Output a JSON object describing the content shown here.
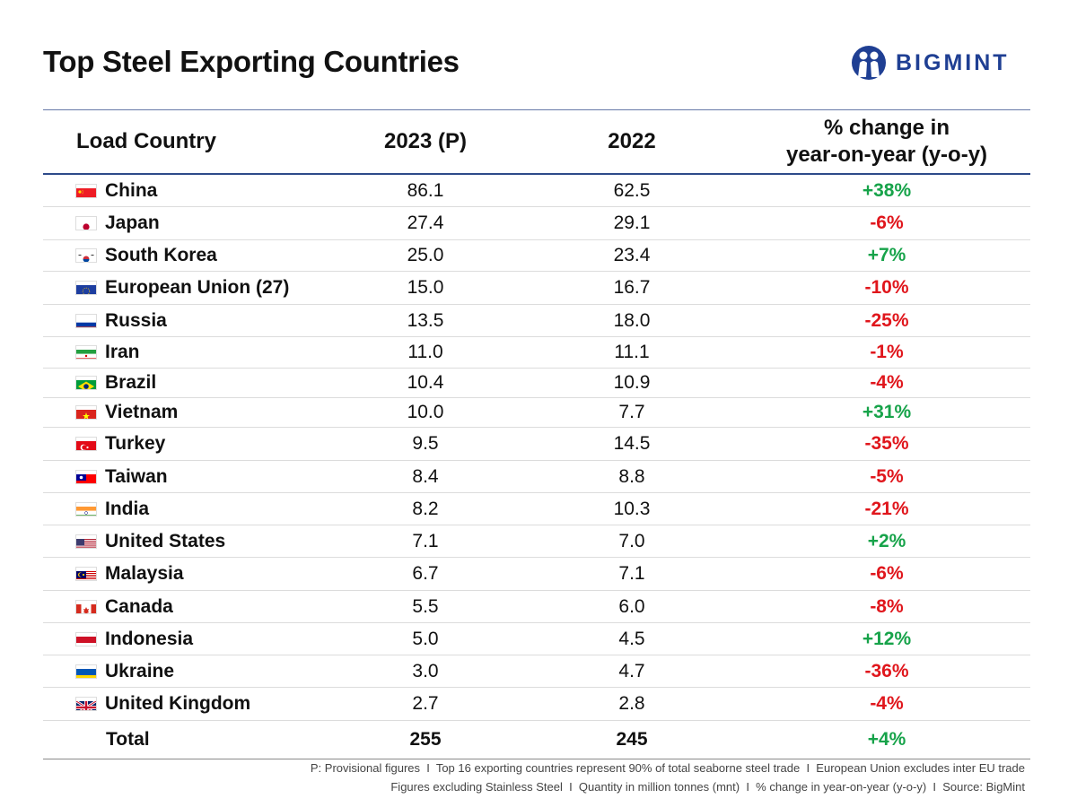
{
  "title": "Top Steel Exporting Countries",
  "brand": {
    "name": "BIGMINT",
    "color": "#1f3f93",
    "icon": "bigmint-logo-icon"
  },
  "colors": {
    "positive": "#17a34a",
    "negative": "#e0161c",
    "header_rule": "#2d4a8a"
  },
  "table": {
    "headers": {
      "country": "Load Country",
      "y2023": "2023 (P)",
      "y2022": "2022",
      "pct_line1": "% change in",
      "pct_line2": "year-on-year (y-o-y)"
    },
    "rows": [
      {
        "country": "China",
        "flag": "flag-china-icon",
        "y2023": "86.1",
        "y2022": "62.5",
        "pct": "+38%",
        "trend": "pos"
      },
      {
        "country": "Japan",
        "flag": "flag-japan-icon",
        "y2023": "27.4",
        "y2022": "29.1",
        "pct": "-6%",
        "trend": "neg"
      },
      {
        "country": "South Korea",
        "flag": "flag-south-korea-icon",
        "y2023": "25.0",
        "y2022": "23.4",
        "pct": "+7%",
        "trend": "pos"
      },
      {
        "country": "European Union (27)",
        "flag": "flag-eu-icon",
        "y2023": "15.0",
        "y2022": "16.7",
        "pct": "-10%",
        "trend": "neg"
      },
      {
        "country": "Russia",
        "flag": "flag-russia-icon",
        "y2023": "13.5",
        "y2022": "18.0",
        "pct": "-25%",
        "trend": "neg"
      },
      {
        "country": "Iran",
        "flag": "flag-iran-icon",
        "y2023": "11.0",
        "y2022": "11.1",
        "pct": "-1%",
        "trend": "neg"
      },
      {
        "country": "Brazil",
        "flag": "flag-brazil-icon",
        "y2023": "10.4",
        "y2022": "10.9",
        "pct": "-4%",
        "trend": "neg"
      },
      {
        "country": "Vietnam",
        "flag": "flag-vietnam-icon",
        "y2023": "10.0",
        "y2022": "7.7",
        "pct": "+31%",
        "trend": "pos"
      },
      {
        "country": "Turkey",
        "flag": "flag-turkey-icon",
        "y2023": "9.5",
        "y2022": "14.5",
        "pct": "-35%",
        "trend": "neg"
      },
      {
        "country": "Taiwan",
        "flag": "flag-taiwan-icon",
        "y2023": "8.4",
        "y2022": "8.8",
        "pct": "-5%",
        "trend": "neg"
      },
      {
        "country": "India",
        "flag": "flag-india-icon",
        "y2023": "8.2",
        "y2022": "10.3",
        "pct": "-21%",
        "trend": "neg"
      },
      {
        "country": "United States",
        "flag": "flag-usa-icon",
        "y2023": "7.1",
        "y2022": "7.0",
        "pct": "+2%",
        "trend": "pos"
      },
      {
        "country": "Malaysia",
        "flag": "flag-malaysia-icon",
        "y2023": "6.7",
        "y2022": "7.1",
        "pct": "-6%",
        "trend": "neg"
      },
      {
        "country": "Canada",
        "flag": "flag-canada-icon",
        "y2023": "5.5",
        "y2022": "6.0",
        "pct": "-8%",
        "trend": "neg"
      },
      {
        "country": "Indonesia",
        "flag": "flag-indonesia-icon",
        "y2023": "5.0",
        "y2022": "4.5",
        "pct": "+12%",
        "trend": "pos"
      },
      {
        "country": "Ukraine",
        "flag": "flag-ukraine-icon",
        "y2023": "3.0",
        "y2022": "4.7",
        "pct": "-36%",
        "trend": "neg"
      },
      {
        "country": "United Kingdom",
        "flag": "flag-uk-icon",
        "y2023": "2.7",
        "y2022": "2.8",
        "pct": "-4%",
        "trend": "neg"
      }
    ],
    "total": {
      "label": "Total",
      "y2023": "255",
      "y2022": "245",
      "pct": "+4%",
      "trend": "pos"
    }
  },
  "footer": {
    "line1": "P: Provisional figures  I  Top 16 exporting countries represent 90% of total seaborne steel trade  I  European Union excludes inter EU trade",
    "line2": "Figures excluding Stainless Steel  I  Quantity in million tonnes (mnt)  I  % change in year-on-year (y-o-y)  I  Source: BigMint"
  }
}
